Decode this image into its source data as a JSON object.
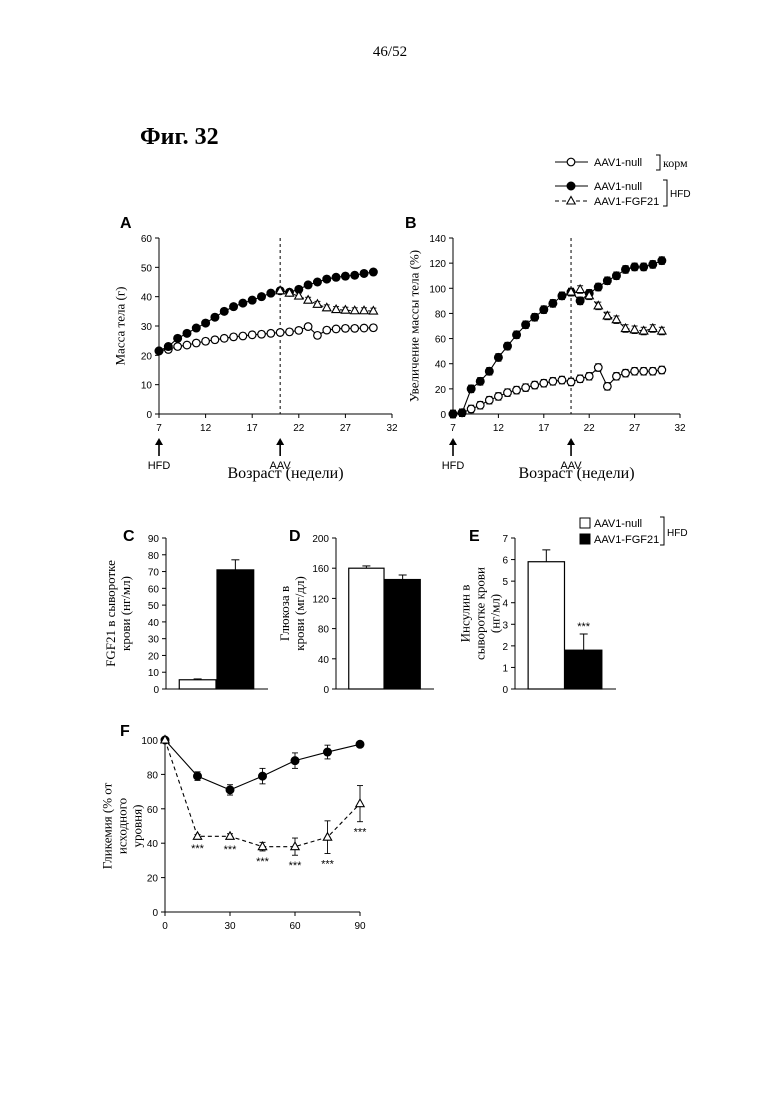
{
  "page_number": "46/52",
  "figure_title": "Фиг. 32",
  "legend_top": {
    "items": [
      {
        "label": "AAV1-null",
        "marker": "open-circle",
        "line": "solid"
      },
      {
        "label": "AAV1-null",
        "marker": "filled-circle",
        "line": "solid"
      },
      {
        "label": "AAV1-FGF21",
        "marker": "open-triangle",
        "line": "dashed"
      }
    ],
    "group_chow": "корм",
    "group_hfd": "HFD"
  },
  "legend_bars": {
    "items": [
      {
        "label": "AAV1-null",
        "fill": "#ffffff"
      },
      {
        "label": "AAV1-FGF21",
        "fill": "#000000"
      }
    ],
    "group": "HFD"
  },
  "markers": {
    "hfd": "HFD",
    "aav": "AAV"
  },
  "significance": "***",
  "chart_data": [
    {
      "panel": "A",
      "type": "line",
      "ylabel": "Масса тела (г)",
      "xlabel": "Возраст (недели)",
      "xlim": [
        7,
        32
      ],
      "ylim": [
        0,
        60
      ],
      "xticks": [
        7,
        12,
        17,
        22,
        27,
        32
      ],
      "yticks": [
        0,
        10,
        20,
        30,
        40,
        50,
        60
      ],
      "series": [
        {
          "label": "AAV1-null (корм)",
          "marker": "open-circle",
          "line": "solid",
          "x": [
            7,
            8,
            9,
            10,
            11,
            12,
            13,
            14,
            15,
            16,
            17,
            18,
            19,
            20,
            21,
            22,
            23,
            24,
            25,
            26,
            27,
            28,
            29,
            30
          ],
          "y": [
            21.5,
            22,
            23,
            23.5,
            24.2,
            24.8,
            25.3,
            25.8,
            26.3,
            26.6,
            27,
            27.2,
            27.5,
            27.8,
            28,
            28.5,
            29.8,
            26.8,
            28.6,
            29,
            29.2,
            29.2,
            29.3,
            29.4
          ]
        },
        {
          "label": "AAV1-null (HFD)",
          "marker": "filled-circle",
          "line": "solid",
          "x": [
            7,
            8,
            9,
            10,
            11,
            12,
            13,
            14,
            15,
            16,
            17,
            18,
            19,
            20,
            21,
            22,
            23,
            24,
            25,
            26,
            27,
            28,
            29,
            30
          ],
          "y": [
            21.5,
            23,
            25.8,
            27.5,
            29.3,
            31,
            33,
            35,
            36.6,
            37.8,
            38.8,
            40,
            41.2,
            42,
            41.5,
            42.5,
            44,
            45,
            46,
            46.6,
            47,
            47.3,
            47.9,
            48.4
          ]
        },
        {
          "label": "AAV1-FGF21 (HFD)",
          "marker": "open-triangle",
          "line": "dashed",
          "x": [
            20,
            21,
            22,
            23,
            24,
            25,
            26,
            27,
            28,
            29,
            30
          ],
          "y": [
            42,
            41.2,
            40.2,
            38.8,
            37.4,
            36.2,
            35.6,
            35.4,
            35.2,
            35.2,
            35.1
          ]
        }
      ]
    },
    {
      "panel": "B",
      "type": "line",
      "ylabel": "Увеличение массы тела (%)",
      "xlabel": "Возраст (недели)",
      "xlim": [
        7,
        32
      ],
      "ylim": [
        0,
        140
      ],
      "xticks": [
        7,
        12,
        17,
        22,
        27,
        32
      ],
      "yticks": [
        0,
        20,
        40,
        60,
        80,
        100,
        120,
        140
      ],
      "series": [
        {
          "label": "AAV1-null (корм)",
          "marker": "open-circle",
          "line": "solid",
          "x": [
            7,
            8,
            9,
            10,
            11,
            12,
            13,
            14,
            15,
            16,
            17,
            18,
            19,
            20,
            21,
            22,
            23,
            24,
            25,
            26,
            27,
            28,
            29,
            30
          ],
          "y": [
            0,
            1,
            4,
            7,
            11,
            14,
            17,
            19,
            21,
            23,
            24.5,
            26,
            27,
            25.5,
            28,
            30,
            37,
            22,
            30,
            32.5,
            34,
            34,
            34,
            35
          ]
        },
        {
          "label": "AAV1-null (HFD)",
          "marker": "filled-circle",
          "line": "solid",
          "x": [
            7,
            8,
            9,
            10,
            11,
            12,
            13,
            14,
            15,
            16,
            17,
            18,
            19,
            20,
            21,
            22,
            23,
            24,
            25,
            26,
            27,
            28,
            29,
            30
          ],
          "y": [
            0,
            1,
            20,
            26,
            34,
            45,
            54,
            63,
            71,
            77,
            83,
            88,
            94,
            97,
            90,
            96,
            101,
            106,
            110,
            115,
            117,
            117,
            119,
            122
          ]
        },
        {
          "label": "AAV1-FGF21 (HFD)",
          "marker": "open-triangle",
          "line": "dashed",
          "x": [
            20,
            21,
            22,
            23,
            24,
            25,
            26,
            27,
            28,
            29,
            30
          ],
          "y": [
            97,
            99,
            94,
            86,
            78,
            75,
            68,
            67,
            66,
            68,
            66
          ]
        }
      ]
    },
    {
      "panel": "C",
      "type": "bar",
      "ylabel": "FGF21 в сыворотке крови (нг/мл)",
      "ylim": [
        0,
        90
      ],
      "yticks": [
        0,
        10,
        20,
        30,
        40,
        50,
        60,
        70,
        80,
        90
      ],
      "categories": [
        "AAV1-null",
        "AAV1-FGF21"
      ],
      "values": [
        5.5,
        71
      ],
      "errors": [
        0.5,
        6
      ]
    },
    {
      "panel": "D",
      "type": "bar",
      "ylabel": "Глюкоза в крови (мг/дл)",
      "ylim": [
        0,
        200
      ],
      "yticks": [
        0,
        40,
        80,
        120,
        160,
        200
      ],
      "categories": [
        "AAV1-null",
        "AAV1-FGF21"
      ],
      "values": [
        160,
        145
      ],
      "errors": [
        3,
        6
      ]
    },
    {
      "panel": "E",
      "type": "bar",
      "ylabel": "Инсулин в сыворотке крови (нг/мл)",
      "ylim": [
        0,
        7
      ],
      "yticks": [
        0,
        1,
        2,
        3,
        4,
        5,
        6,
        7
      ],
      "categories": [
        "AAV1-null",
        "AAV1-FGF21"
      ],
      "values": [
        5.9,
        1.8
      ],
      "errors": [
        0.55,
        0.75
      ],
      "annotations": [
        "",
        "***"
      ]
    },
    {
      "panel": "F",
      "type": "line",
      "ylabel": "Гликемия (% от исходного уровня)",
      "xlim": [
        0,
        90
      ],
      "ylim": [
        0,
        100
      ],
      "xticks": [
        0,
        30,
        60,
        90
      ],
      "yticks": [
        0,
        20,
        40,
        60,
        80,
        100
      ],
      "series": [
        {
          "label": "AAV1-null (HFD)",
          "marker": "filled-circle",
          "line": "solid",
          "x": [
            0,
            15,
            30,
            45,
            60,
            75,
            90
          ],
          "y": [
            100,
            79,
            71,
            79,
            88,
            93,
            97.5
          ],
          "errors": [
            0,
            2.5,
            3,
            4.5,
            4.5,
            4,
            1.5
          ]
        },
        {
          "label": "AAV1-FGF21 (HFD)",
          "marker": "open-triangle",
          "line": "dashed",
          "x": [
            0,
            15,
            30,
            45,
            60,
            75,
            90
          ],
          "y": [
            100,
            44,
            44,
            38,
            38,
            43.5,
            63
          ],
          "errors": [
            0,
            1,
            1.5,
            2.5,
            5,
            9.5,
            10.5
          ],
          "annotations": [
            "",
            "***",
            "***",
            "***",
            "***",
            "***",
            "***"
          ]
        }
      ]
    }
  ]
}
